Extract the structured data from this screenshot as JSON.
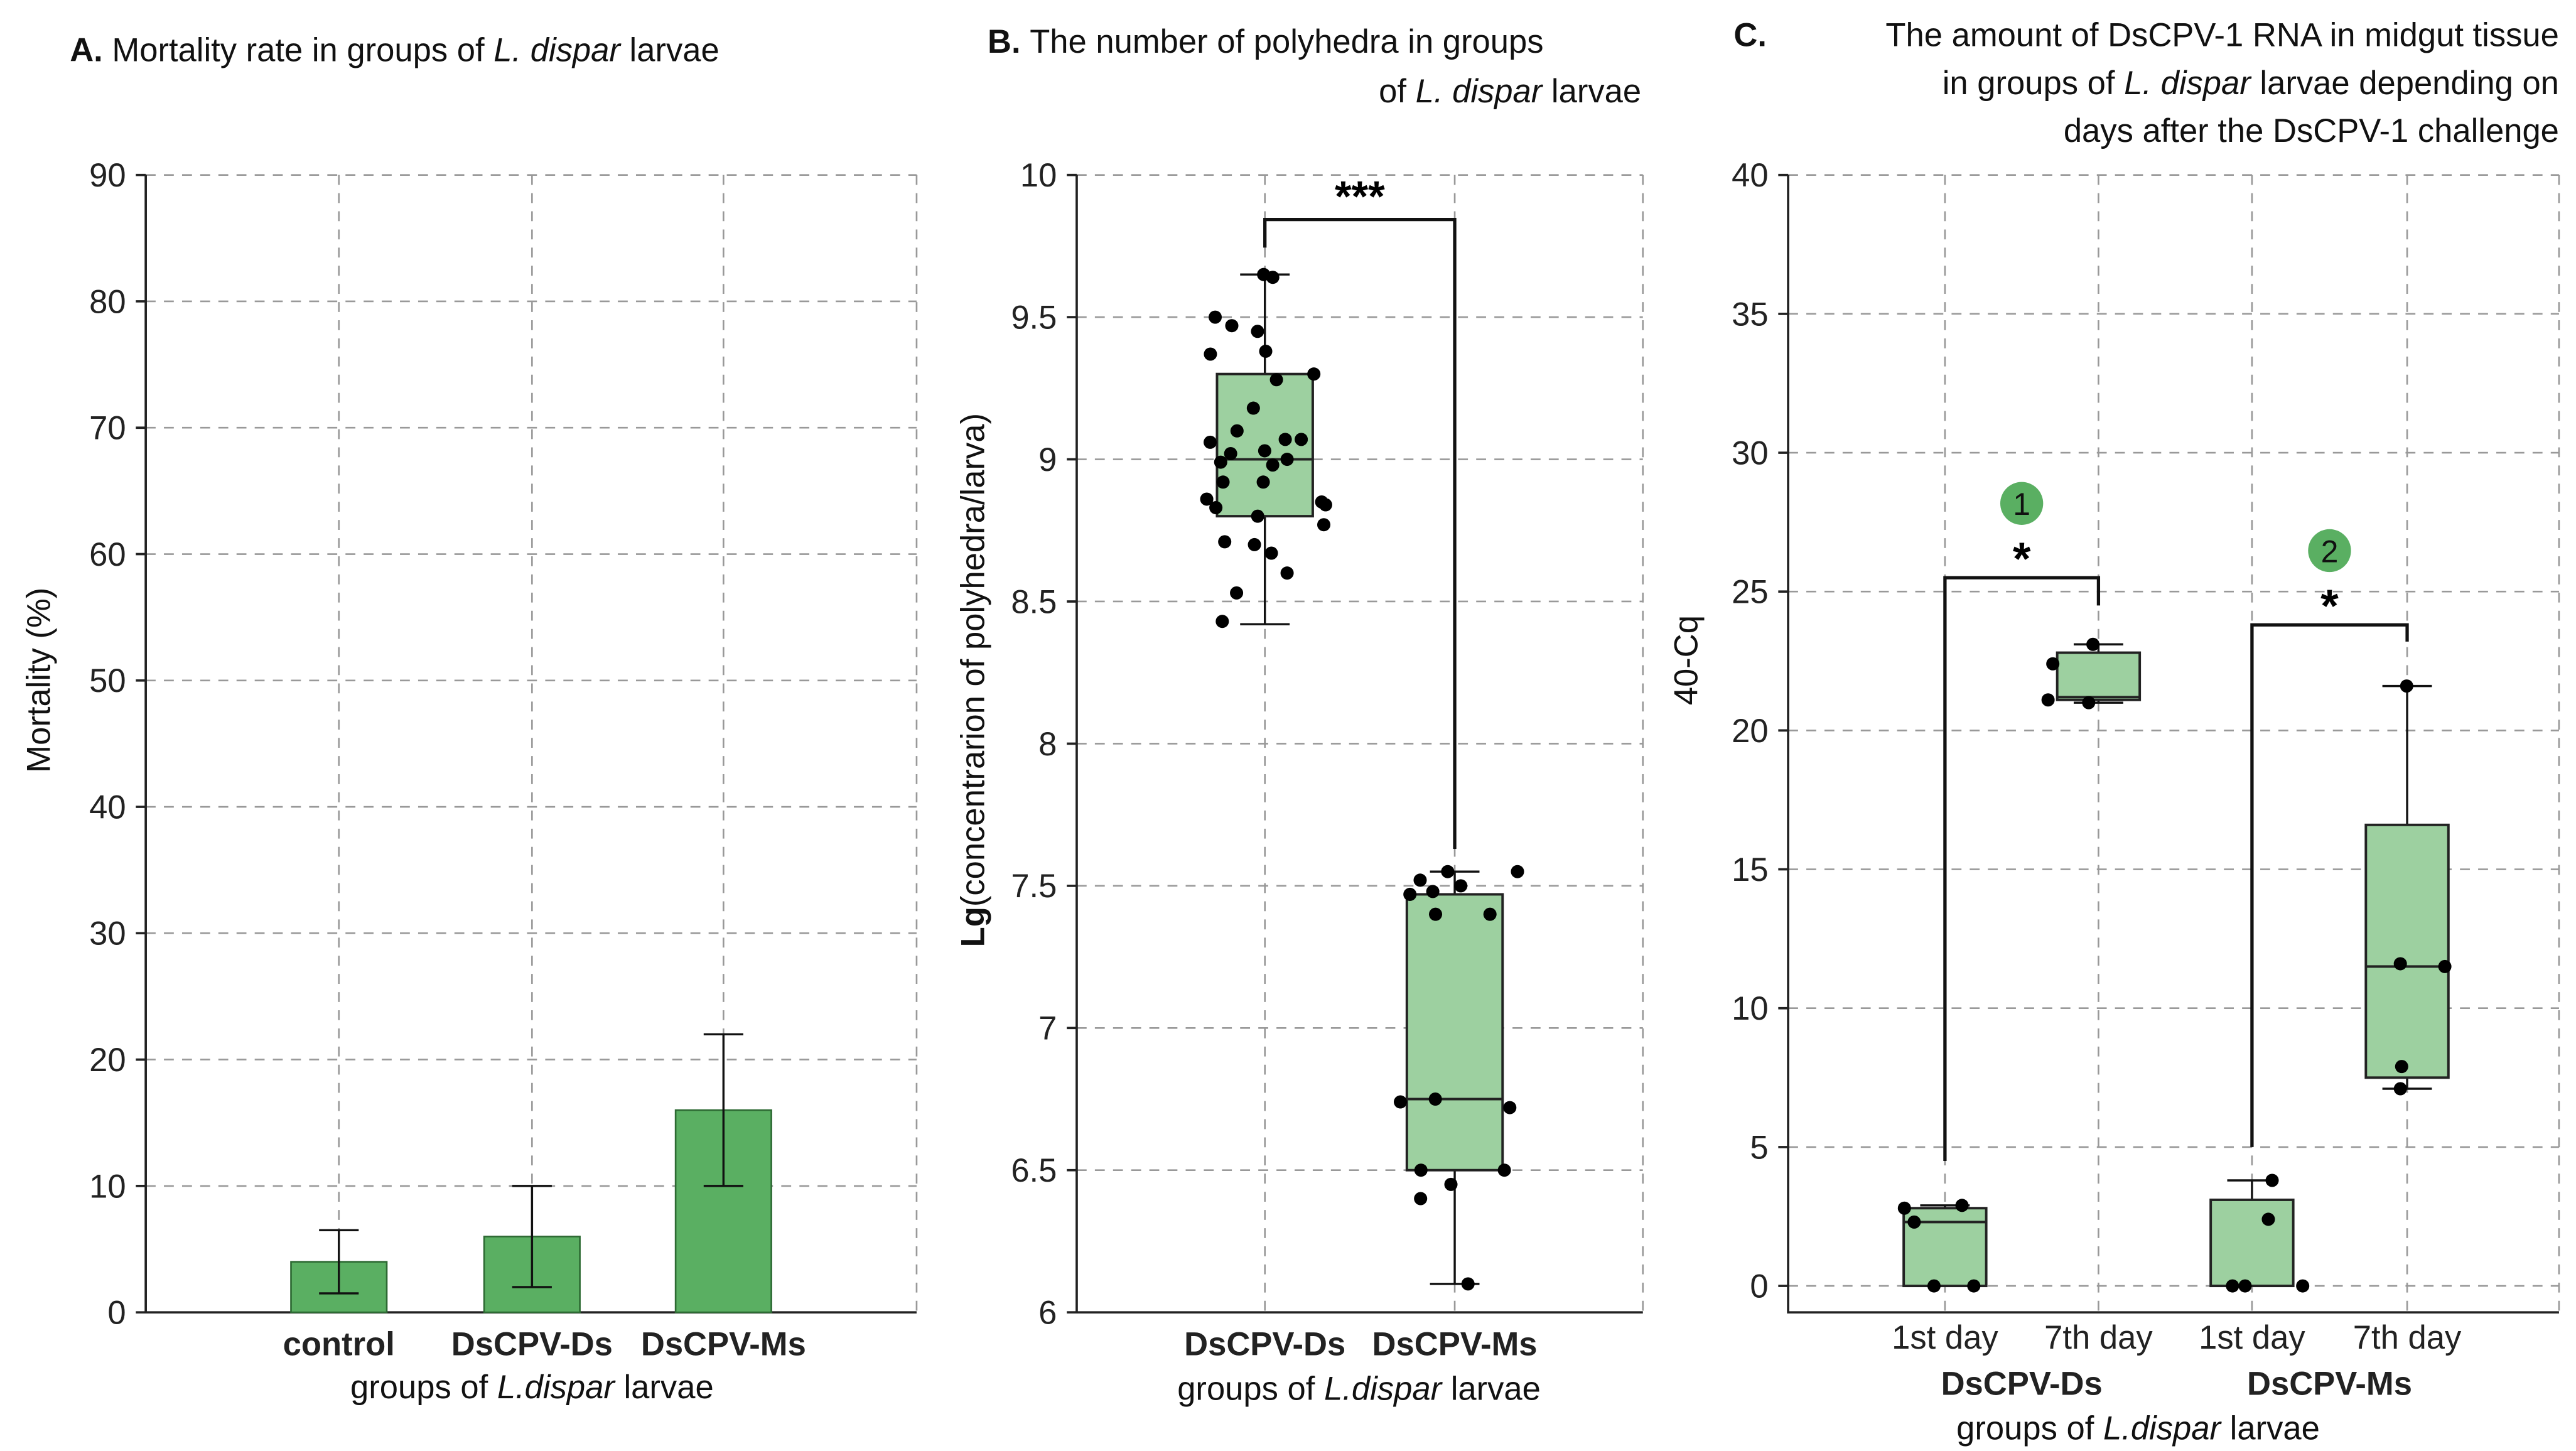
{
  "colors": {
    "bar": "#5aaf62",
    "box": "#9dd0a0",
    "badge": "#5aaf62",
    "ink": "#000000"
  },
  "chart_data": [
    {
      "id": "A",
      "type": "bar",
      "title": [
        "A.",
        "Mortality rate in groups of ",
        "L. dispar",
        " larvae"
      ],
      "ylabel": "Mortality (%)",
      "xlabel": [
        "groups of ",
        "L.dispar",
        " larvae"
      ],
      "categories": [
        "control",
        "DsCPV-Ds",
        "DsCPV-Ms"
      ],
      "values": [
        4,
        6,
        16
      ],
      "error_low": [
        1.5,
        2,
        10
      ],
      "error_high": [
        6.5,
        10,
        22
      ],
      "ylim": [
        0,
        90
      ],
      "yticks": [
        "0",
        "10",
        "20",
        "30",
        "40",
        "50",
        "60",
        "70",
        "80",
        "90"
      ],
      "grid": true
    },
    {
      "id": "B",
      "type": "box",
      "title": [
        "B.",
        "The number of polyhedra in groups",
        "of ",
        "L. dispar",
        " larvae"
      ],
      "ylabel": [
        "Lg",
        "(concentrarion of polyhedra/larva)"
      ],
      "xlabel": [
        "groups of ",
        "L.dispar",
        " larvae"
      ],
      "categories": [
        "DsCPV-Ds",
        "DsCPV-Ms"
      ],
      "boxes": [
        {
          "whisker_low": 8.42,
          "q1": 8.8,
          "median": 9.0,
          "q3": 9.3,
          "whisker_high": 9.65,
          "points": [
            9.65,
            9.64,
            9.5,
            9.47,
            9.45,
            9.38,
            9.37,
            9.3,
            9.28,
            9.18,
            9.1,
            9.07,
            9.07,
            9.06,
            9.03,
            9.02,
            9.0,
            8.99,
            8.98,
            8.92,
            8.92,
            8.86,
            8.85,
            8.84,
            8.83,
            8.8,
            8.77,
            8.71,
            8.7,
            8.67,
            8.6,
            8.53,
            8.43
          ]
        },
        {
          "whisker_low": 6.1,
          "q1": 6.5,
          "median": 6.75,
          "q3": 7.47,
          "whisker_high": 7.55,
          "points": [
            7.55,
            7.55,
            7.52,
            7.5,
            7.48,
            7.47,
            7.4,
            7.4,
            6.75,
            6.74,
            6.72,
            6.5,
            6.5,
            6.45,
            6.4,
            6.1
          ]
        }
      ],
      "significance": "***",
      "ylim": [
        6,
        10
      ],
      "yticks": [
        "6",
        "6.5",
        "7",
        "7.5",
        "8",
        "8.5",
        "9",
        "9.5",
        "10"
      ],
      "grid": true
    },
    {
      "id": "C",
      "type": "box",
      "title": [
        "C.",
        "The amount of DsCPV-1 RNA in midgut tissue",
        "in groups of ",
        "L. dispar",
        " larvae depending on",
        "days after the DsCPV-1 challenge"
      ],
      "ylabel": "40-Cq",
      "xlabel": [
        "groups of ",
        "L.dispar",
        " larvae"
      ],
      "categories": [
        "1st day",
        "7th day",
        "1st day",
        "7th day"
      ],
      "groups": [
        "DsCPV-Ds",
        "DsCPV-Ms"
      ],
      "boxes": [
        {
          "whisker_low": 0,
          "q1": 0,
          "median": 2.3,
          "q3": 2.8,
          "whisker_high": 2.9,
          "points": [
            0,
            0,
            2.9,
            2.8,
            2.3
          ]
        },
        {
          "whisker_low": 21.0,
          "q1": 21.1,
          "median": 21.2,
          "q3": 22.8,
          "whisker_high": 23.1,
          "points": [
            23.1,
            22.4,
            21.1,
            21.0
          ]
        },
        {
          "whisker_low": 0,
          "q1": 0,
          "median": 0,
          "q3": 3.1,
          "whisker_high": 3.8,
          "points": [
            3.8,
            2.4,
            0,
            0,
            0
          ]
        },
        {
          "whisker_low": 7.1,
          "q1": 7.5,
          "median": 11.5,
          "q3": 16.6,
          "whisker_high": 21.6,
          "points": [
            21.6,
            11.6,
            11.5,
            7.9,
            7.1
          ]
        }
      ],
      "comparisons": [
        {
          "badge": "1",
          "label": "*"
        },
        {
          "badge": "2",
          "label": "*"
        }
      ],
      "ylim": [
        0,
        40
      ],
      "yticks": [
        "0",
        "5",
        "10",
        "15",
        "20",
        "25",
        "30",
        "35",
        "40"
      ],
      "grid": true
    }
  ]
}
